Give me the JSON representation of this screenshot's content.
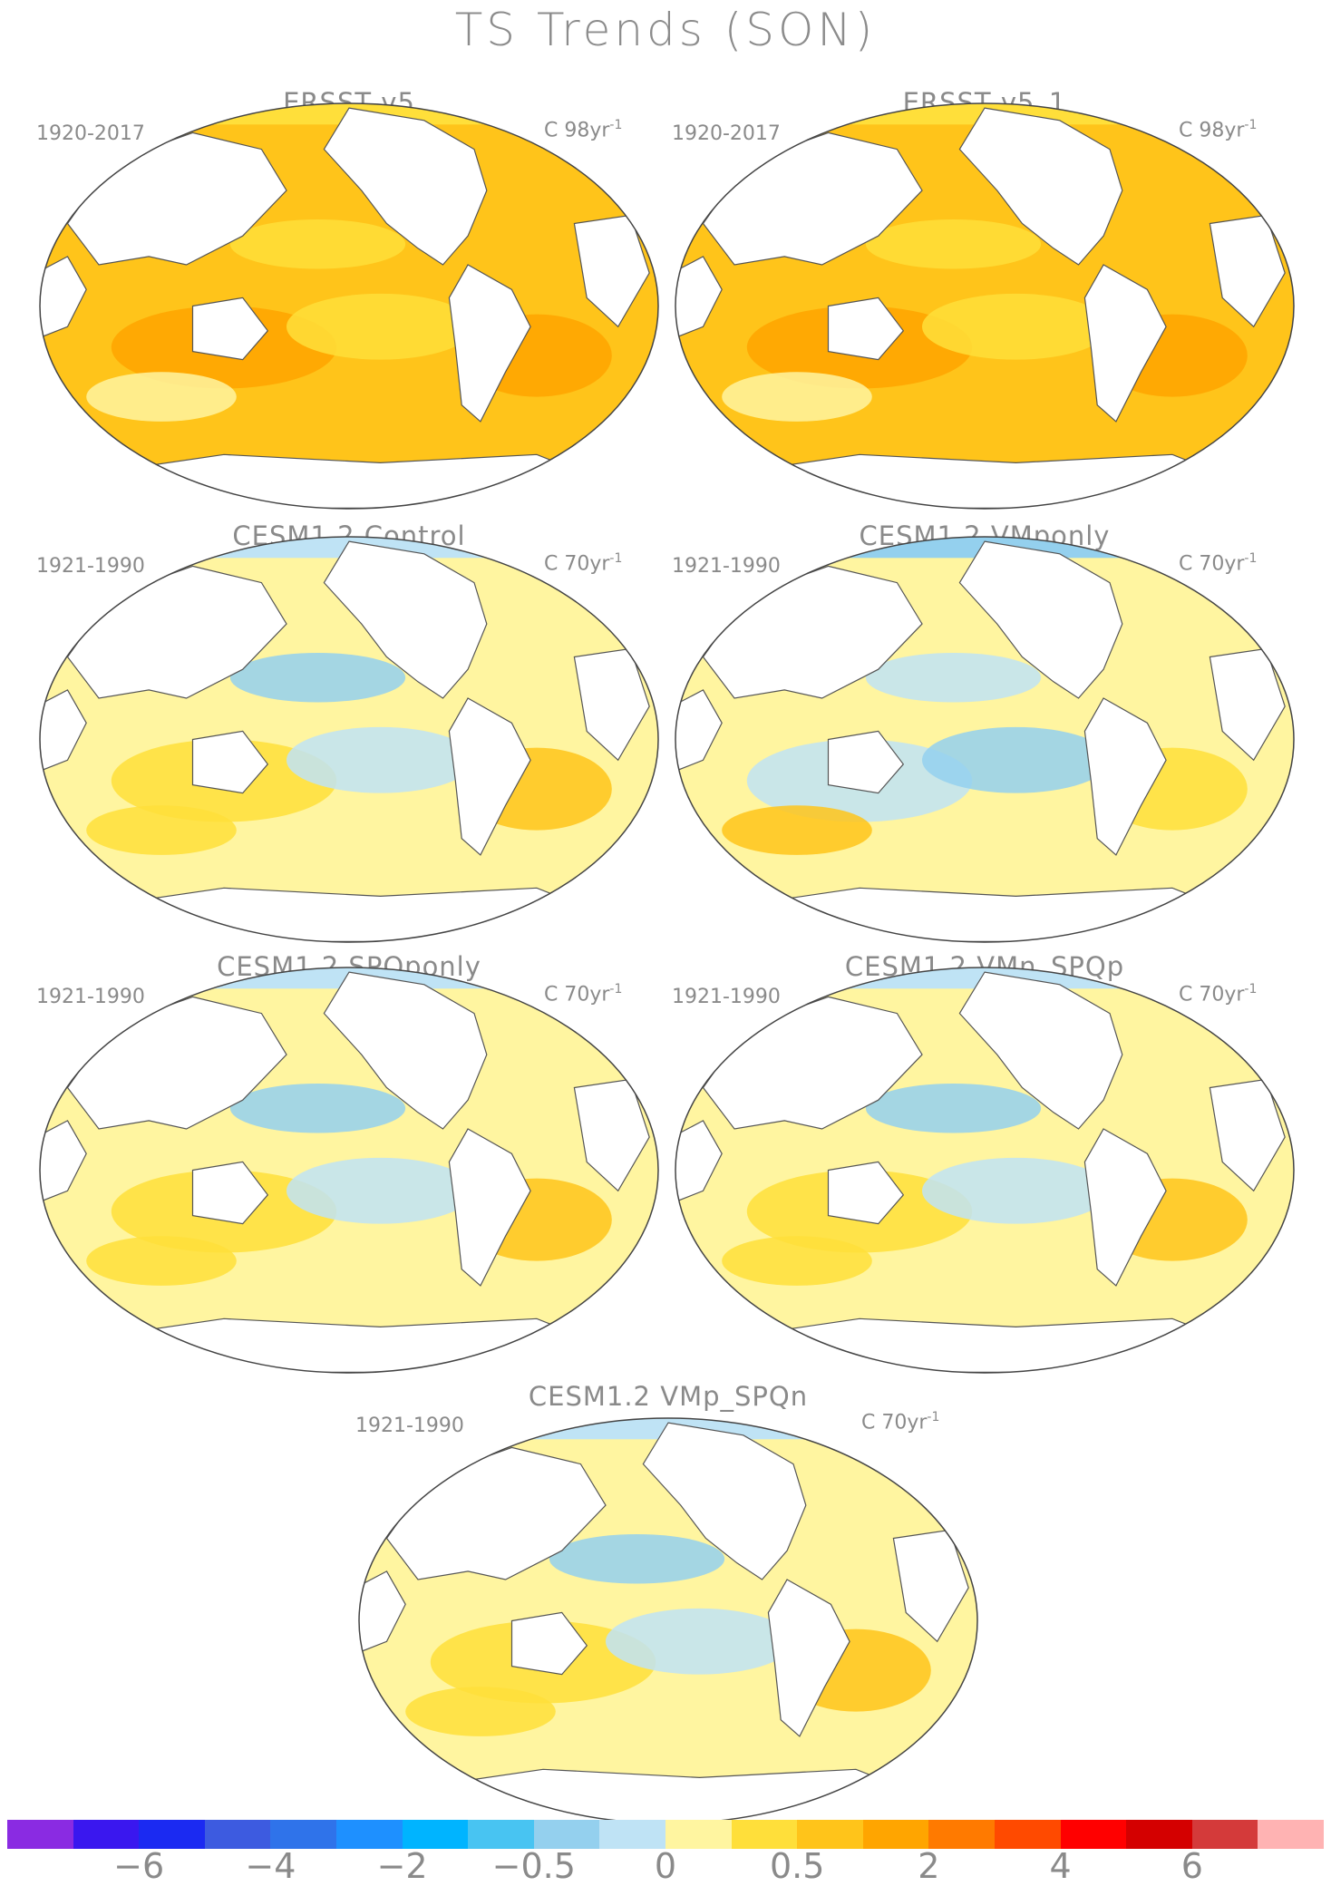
{
  "title": "TS Trends (SON)",
  "panels": [
    {
      "title": "ERSST v5",
      "period": "1920-2017",
      "units": "C 98yr",
      "units_exp": "-1",
      "regime": "warm"
    },
    {
      "title": "ERSST v5_1",
      "period": "1920-2017",
      "units": "C 98yr",
      "units_exp": "-1",
      "regime": "warm"
    },
    {
      "title": "CESM1.2 Control",
      "period": "1921-1990",
      "units": "C 70yr",
      "units_exp": "-1",
      "regime": "mixed"
    },
    {
      "title": "CESM1.2 VMponly",
      "period": "1921-1990",
      "units": "C 70yr",
      "units_exp": "-1",
      "regime": "cool"
    },
    {
      "title": "CESM1.2 SPQponly",
      "period": "1921-1990",
      "units": "C 70yr",
      "units_exp": "-1",
      "regime": "mixed"
    },
    {
      "title": "CESM1.2 VMn_SPQp",
      "period": "1921-1990",
      "units": "C 70yr",
      "units_exp": "-1",
      "regime": "mixed"
    },
    {
      "title": "CESM1.2 VMp_SPQn",
      "period": "1921-1990",
      "units": "C 70yr",
      "units_exp": "-1",
      "regime": "mixed"
    }
  ],
  "colorbar": {
    "colors": [
      "#8a2be2",
      "#3a17ef",
      "#1b2af2",
      "#3d5be0",
      "#2f73ea",
      "#1e90ff",
      "#00b4ff",
      "#48c4f2",
      "#94d0ee",
      "#bfe3f5",
      "#fff5a0",
      "#ffdf3a",
      "#ffc41a",
      "#ffa500",
      "#ff7a00",
      "#ff4a00",
      "#ff0000",
      "#d40000",
      "#d43a3a",
      "#ffb3b3"
    ],
    "labels": [
      {
        "text": "−6",
        "boundary": 2
      },
      {
        "text": "−4",
        "boundary": 4
      },
      {
        "text": "−2",
        "boundary": 6
      },
      {
        "text": "−0.5",
        "boundary": 8
      },
      {
        "text": "0",
        "boundary": 10
      },
      {
        "text": "0.5",
        "boundary": 12
      },
      {
        "text": "2",
        "boundary": 14
      },
      {
        "text": "4",
        "boundary": 16
      },
      {
        "text": "6",
        "boundary": 18
      }
    ]
  }
}
